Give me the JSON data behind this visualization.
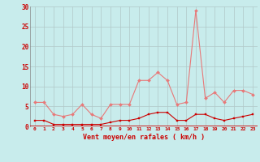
{
  "xlabel": "Vent moyen/en rafales ( km/h )",
  "bg_color": "#c8ecec",
  "grid_color": "#b0c8c8",
  "line_color_avg": "#e87878",
  "line_color_gust": "#cc0000",
  "xlim": [
    -0.5,
    23.5
  ],
  "ylim": [
    0,
    30
  ],
  "yticks": [
    0,
    5,
    10,
    15,
    20,
    25,
    30
  ],
  "xticks": [
    0,
    1,
    2,
    3,
    4,
    5,
    6,
    7,
    8,
    9,
    10,
    11,
    12,
    13,
    14,
    15,
    16,
    17,
    18,
    19,
    20,
    21,
    22,
    23
  ],
  "avg_values": [
    6,
    6,
    3,
    2.5,
    3,
    5.5,
    3,
    2,
    5.5,
    5.5,
    5.5,
    11.5,
    11.5,
    13.5,
    11.5,
    5.5,
    6,
    29,
    7,
    8.5,
    6,
    9,
    9,
    8
  ],
  "gust_values": [
    1.5,
    1.5,
    0.5,
    0.5,
    0.5,
    0.5,
    0.5,
    0.5,
    1,
    1.5,
    1.5,
    2,
    3,
    3.5,
    3.5,
    1.5,
    1.5,
    3,
    3,
    2,
    1.5,
    2,
    2.5,
    3
  ]
}
